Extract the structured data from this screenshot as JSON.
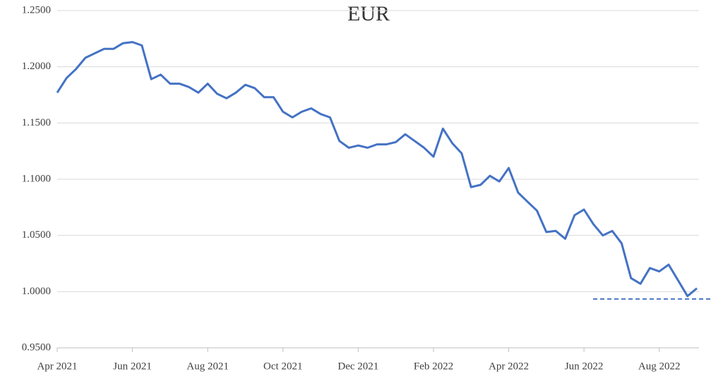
{
  "chart_data": {
    "type": "line",
    "title": "EUR",
    "categories": [
      "Apr 2021",
      null,
      null,
      null,
      null,
      null,
      null,
      null,
      "Jun 2021",
      null,
      null,
      null,
      null,
      null,
      null,
      null,
      "Aug 2021",
      null,
      null,
      null,
      null,
      null,
      null,
      null,
      "Oct 2021",
      null,
      null,
      null,
      null,
      null,
      null,
      null,
      "Dec 2021",
      null,
      null,
      null,
      null,
      null,
      null,
      null,
      "Feb 2022",
      null,
      null,
      null,
      null,
      null,
      null,
      null,
      "Apr 2022",
      null,
      null,
      null,
      null,
      null,
      null,
      null,
      "Jun 2022",
      null,
      null,
      null,
      null,
      null,
      null,
      null,
      "Aug 2022",
      null,
      null,
      null,
      null
    ],
    "series": [
      {
        "name": "EUR",
        "color": "#4472c4",
        "values": [
          1.177,
          1.19,
          1.198,
          1.208,
          1.212,
          1.216,
          1.216,
          1.221,
          1.222,
          1.219,
          1.189,
          1.193,
          1.185,
          1.185,
          1.182,
          1.177,
          1.185,
          1.176,
          1.172,
          1.177,
          1.184,
          1.181,
          1.173,
          1.173,
          1.16,
          1.155,
          1.16,
          1.163,
          1.158,
          1.155,
          1.134,
          1.128,
          1.13,
          1.128,
          1.131,
          1.131,
          1.133,
          1.14,
          1.134,
          1.128,
          1.12,
          1.145,
          1.132,
          1.123,
          1.093,
          1.095,
          1.103,
          1.098,
          1.11,
          1.088,
          1.08,
          1.072,
          1.053,
          1.054,
          1.047,
          1.068,
          1.073,
          1.06,
          1.05,
          1.054,
          1.043,
          1.012,
          1.007,
          1.021,
          1.018,
          1.024,
          1.01,
          0.996,
          1.003
        ]
      }
    ],
    "reference_line": 0.9935,
    "ylim": [
      0.95,
      1.25
    ],
    "yticks": [
      {
        "value": 0.95,
        "label": "0.9500"
      },
      {
        "value": 1.0,
        "label": "1.0000"
      },
      {
        "value": 1.05,
        "label": "1.0500"
      },
      {
        "value": 1.1,
        "label": "1.1000"
      },
      {
        "value": 1.15,
        "label": "1.1500"
      },
      {
        "value": 1.2,
        "label": "1.2000"
      },
      {
        "value": 1.25,
        "label": "1.2500"
      }
    ],
    "grid": true
  }
}
